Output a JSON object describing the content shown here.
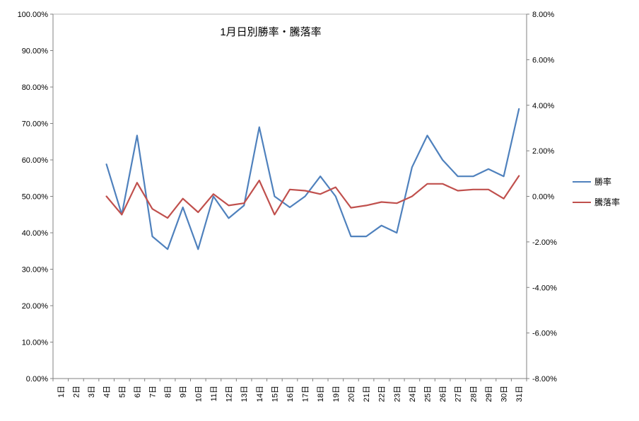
{
  "chart_data": {
    "type": "line",
    "title": "1月日別勝率・騰落率",
    "grid": false,
    "legend_position": "right",
    "categories": [
      "1日",
      "2日",
      "3日",
      "4日",
      "5日",
      "6日",
      "7日",
      "8日",
      "9日",
      "10日",
      "11日",
      "12日",
      "13日",
      "14日",
      "15日",
      "16日",
      "17日",
      "18日",
      "19日",
      "20日",
      "21日",
      "22日",
      "23日",
      "24日",
      "25日",
      "26日",
      "27日",
      "28日",
      "29日",
      "30日",
      "31日"
    ],
    "left_axis": {
      "min": 0,
      "max": 100,
      "step": 10,
      "ticks": [
        "0.00%",
        "10.00%",
        "20.00%",
        "30.00%",
        "40.00%",
        "50.00%",
        "60.00%",
        "70.00%",
        "80.00%",
        "90.00%",
        "100.00%"
      ]
    },
    "right_axis": {
      "min": -8,
      "max": 8,
      "step": 2,
      "ticks": [
        "-8.00%",
        "-6.00%",
        "-4.00%",
        "-2.00%",
        "0.00%",
        "2.00%",
        "4.00%",
        "6.00%",
        "8.00%"
      ]
    },
    "series": [
      {
        "id": "win-rate",
        "name": "勝率",
        "axis": "left",
        "color": "#4F81BD",
        "values": [
          null,
          null,
          null,
          58.8,
          45.0,
          66.7,
          39.0,
          35.5,
          47.0,
          35.5,
          50.0,
          44.0,
          47.5,
          69.0,
          50.0,
          47.0,
          50.0,
          55.5,
          50.0,
          39.0,
          39.0,
          42.0,
          40.0,
          58.0,
          66.7,
          60.0,
          55.5,
          55.5,
          57.5,
          55.5,
          74.0
        ]
      },
      {
        "id": "change-rate",
        "name": "騰落率",
        "axis": "right",
        "color": "#C0504D",
        "values": [
          null,
          null,
          null,
          0.0,
          -0.8,
          0.6,
          -0.55,
          -0.95,
          -0.1,
          -0.7,
          0.1,
          -0.4,
          -0.3,
          0.7,
          -0.8,
          0.3,
          0.25,
          0.1,
          0.4,
          -0.5,
          -0.4,
          -0.25,
          -0.3,
          0.0,
          0.55,
          0.55,
          0.25,
          0.3,
          0.3,
          -0.1,
          0.9
        ]
      }
    ]
  }
}
